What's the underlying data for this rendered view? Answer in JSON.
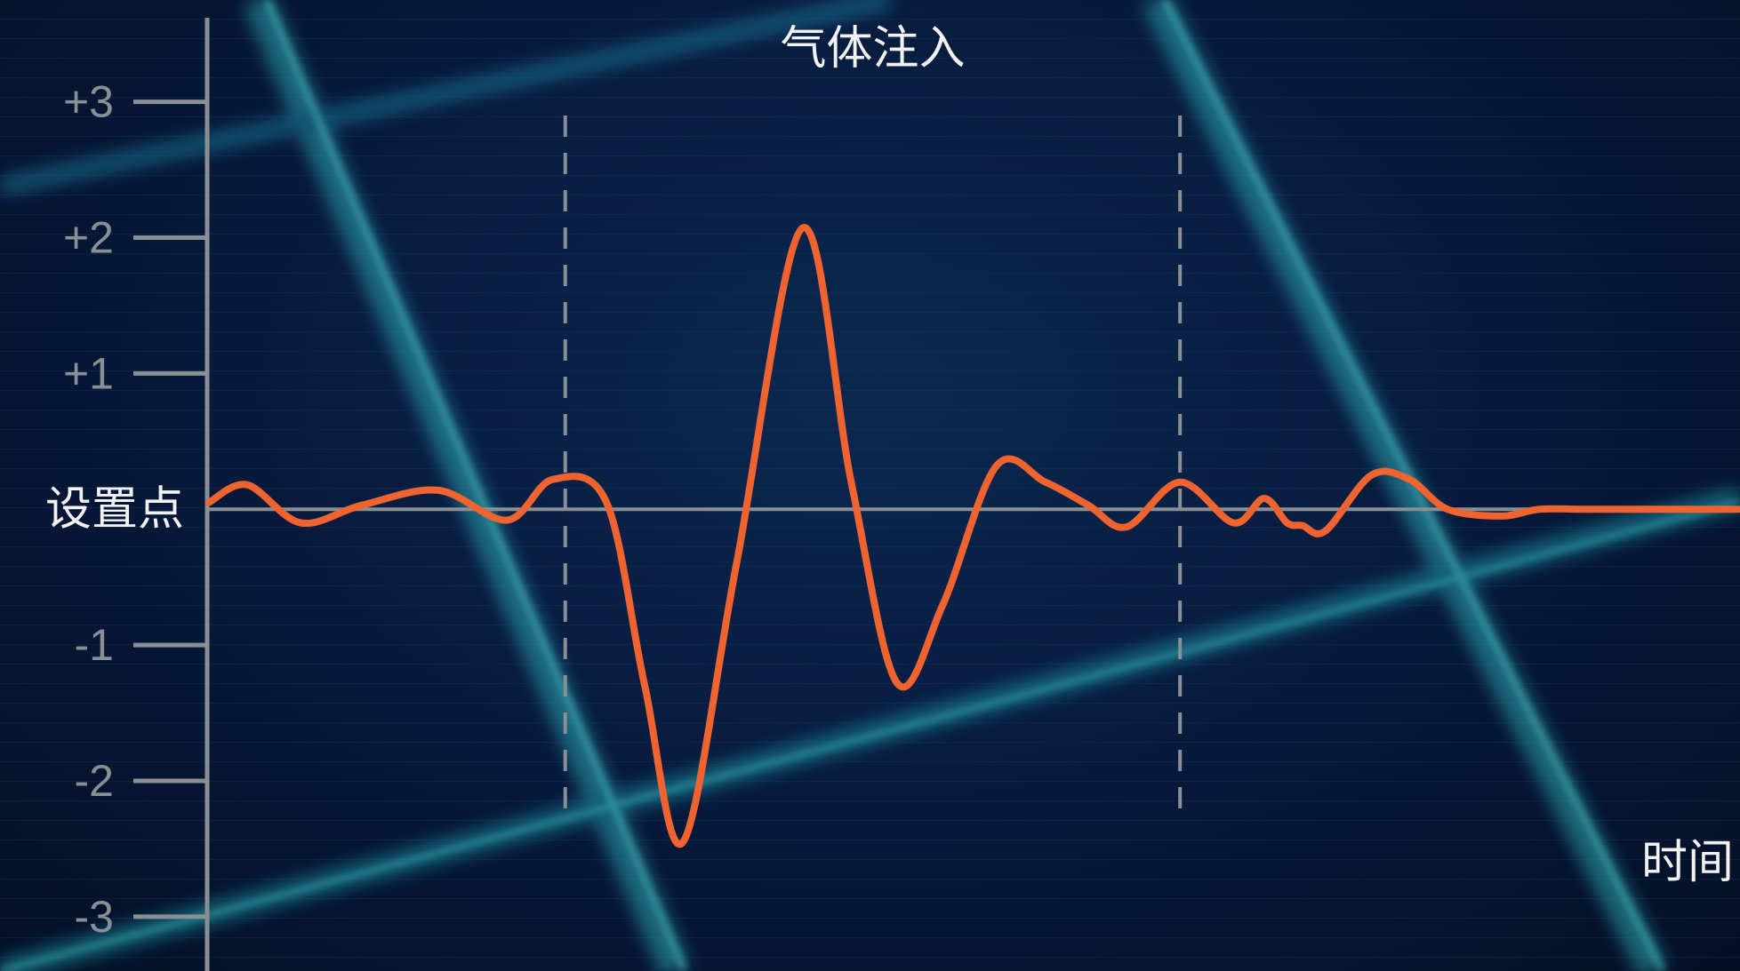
{
  "chart_data": {
    "type": "line",
    "title": "",
    "xlabel": "时间",
    "ylabel": "",
    "ylim": [
      -3.4,
      3.75
    ],
    "xlim": [
      0,
      100
    ],
    "grid": false,
    "y_ticks": [
      {
        "value": 3,
        "label": "+3"
      },
      {
        "value": 2,
        "label": "+2"
      },
      {
        "value": 1,
        "label": "+1"
      },
      {
        "value": 0,
        "label": "设置点"
      },
      {
        "value": -1,
        "label": "-1"
      },
      {
        "value": -2,
        "label": "-2"
      },
      {
        "value": -3,
        "label": "-3"
      }
    ],
    "event": {
      "label": "气体注入",
      "start": 23.3,
      "end": 63.5
    },
    "series": [
      {
        "name": "",
        "color": "#ee6330",
        "x": [
          0,
          2.5,
          6,
          10,
          15,
          19.5,
          22.5,
          26,
          28.5,
          31,
          34.5,
          38.8,
          42,
          45,
          48,
          51.5,
          54.7,
          57.5,
          60,
          63.5,
          67,
          69,
          70.5,
          71.5,
          73,
          76,
          78.5,
          81,
          84.5,
          87,
          90,
          93,
          96,
          100
        ],
        "y": [
          0.05,
          0.18,
          -0.1,
          0.03,
          0.14,
          -0.08,
          0.22,
          0.05,
          -1.3,
          -2.45,
          -0.4,
          2.07,
          0.2,
          -1.28,
          -0.7,
          0.32,
          0.2,
          0.03,
          -0.13,
          0.2,
          -0.1,
          0.08,
          -0.1,
          -0.12,
          -0.16,
          0.25,
          0.22,
          0.0,
          -0.05,
          0.0,
          0.0,
          0.0,
          0.0,
          0.0
        ]
      }
    ]
  }
}
